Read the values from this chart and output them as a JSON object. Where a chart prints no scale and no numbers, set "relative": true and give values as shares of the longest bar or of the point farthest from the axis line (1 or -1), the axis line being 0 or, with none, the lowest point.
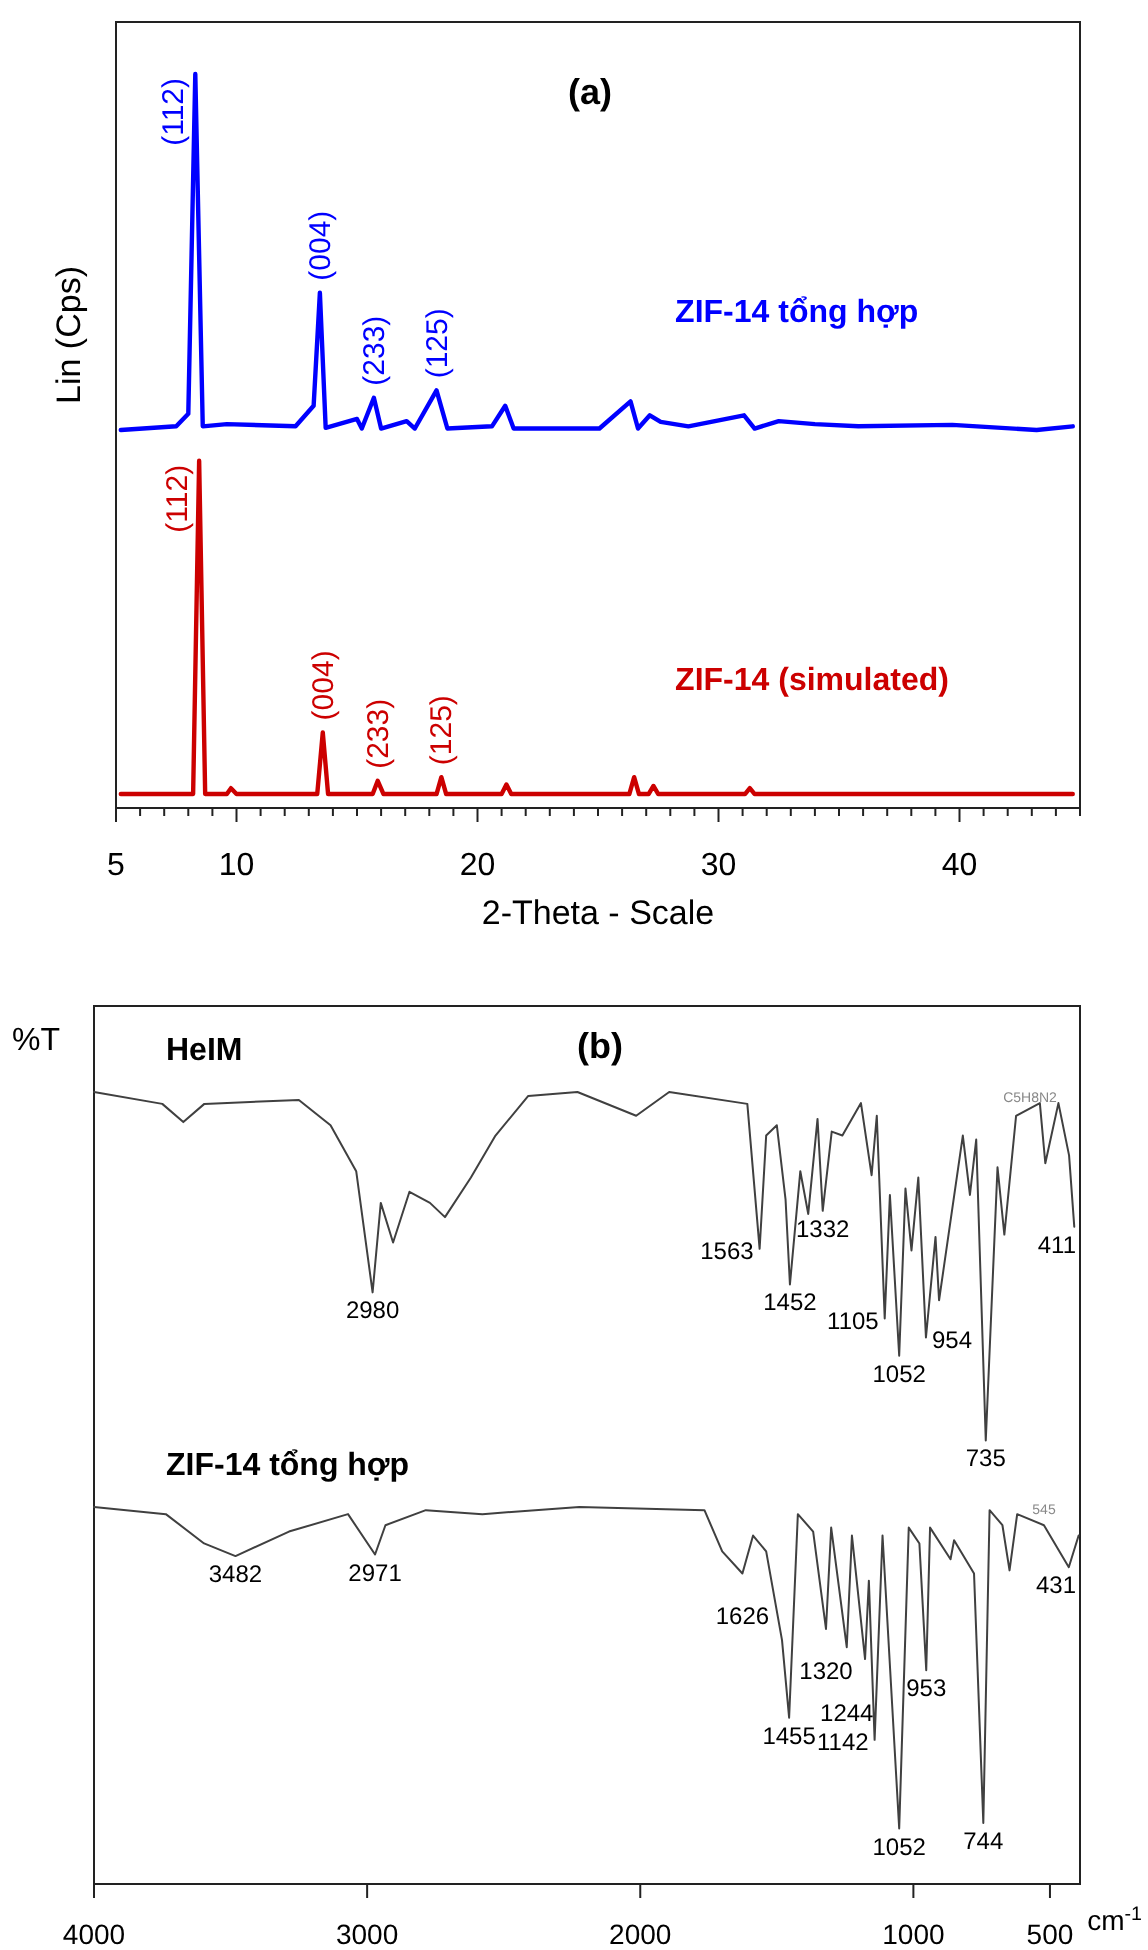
{
  "chart_data": [
    {
      "type": "line",
      "relative": true,
      "xlabel": "2-Theta - Scale",
      "ylabel": "Lin (Cps)",
      "xlim": [
        5,
        45
      ],
      "xticks": [
        5,
        {
          "value": 6,
          "label": null
        },
        {
          "value": 7,
          "label": null
        },
        {
          "value": 8,
          "label": null
        },
        {
          "value": 9,
          "label": null
        },
        10,
        {
          "value": 11,
          "label": null
        },
        {
          "value": 12,
          "label": null
        },
        {
          "value": 13,
          "label": null
        },
        {
          "value": 14,
          "label": null
        },
        {
          "value": 15,
          "label": null
        },
        {
          "value": 16,
          "label": null
        },
        {
          "value": 17,
          "label": null
        },
        {
          "value": 18,
          "label": null
        },
        {
          "value": 19,
          "label": null
        },
        20,
        {
          "value": 21,
          "label": null
        },
        {
          "value": 22,
          "label": null
        },
        {
          "value": 23,
          "label": null
        },
        {
          "value": 24,
          "label": null
        },
        {
          "value": 25,
          "label": null
        },
        {
          "value": 26,
          "label": null
        },
        {
          "value": 27,
          "label": null
        },
        {
          "value": 28,
          "label": null
        },
        {
          "value": 29,
          "label": null
        },
        30,
        {
          "value": 31,
          "label": null
        },
        {
          "value": 32,
          "label": null
        },
        {
          "value": 33,
          "label": null
        },
        {
          "value": 34,
          "label": null
        },
        {
          "value": 35,
          "label": null
        },
        {
          "value": 36,
          "label": null
        },
        {
          "value": 37,
          "label": null
        },
        {
          "value": 38,
          "label": null
        },
        {
          "value": 39,
          "label": null
        },
        40,
        {
          "value": 41,
          "label": null
        },
        {
          "value": 42,
          "label": null
        },
        {
          "value": 43,
          "label": null
        },
        {
          "value": 44,
          "label": null
        },
        {
          "value": 45,
          "label": null
        }
      ],
      "series": [
        {
          "name": "ZIF-14 tổng hợp",
          "color": "#0000ff",
          "x": [
            5.2,
            7.5,
            8.0,
            8.29,
            8.6,
            9.6,
            12.45,
            13.2,
            13.46,
            13.7,
            15.0,
            15.2,
            15.7,
            16.0,
            17.06,
            17.4,
            18.3,
            18.75,
            20.6,
            21.15,
            21.5,
            25.06,
            26.35,
            26.66,
            27.15,
            27.6,
            28.75,
            31.06,
            31.5,
            32.5,
            34.0,
            35.8,
            39.7,
            43.2,
            44.7
          ],
          "values": [
            0.515,
            0.52,
            0.537,
            1.0,
            0.52,
            0.523,
            0.52,
            0.548,
            0.702,
            0.518,
            0.53,
            0.517,
            0.559,
            0.517,
            0.527,
            0.517,
            0.569,
            0.517,
            0.52,
            0.548,
            0.517,
            0.517,
            0.554,
            0.517,
            0.535,
            0.526,
            0.52,
            0.535,
            0.517,
            0.527,
            0.523,
            0.52,
            0.522,
            0.515,
            0.52
          ]
        },
        {
          "name": "ZIF-14 (simulated)",
          "color": "#cc0000",
          "x": [
            5.2,
            8.2,
            8.45,
            8.7,
            9.6,
            9.77,
            10.0,
            13.35,
            13.58,
            13.8,
            15.65,
            15.86,
            16.1,
            18.3,
            18.5,
            18.7,
            21.0,
            21.2,
            21.4,
            26.3,
            26.5,
            26.7,
            27.1,
            27.3,
            27.5,
            31.1,
            31.3,
            31.5,
            44.7
          ],
          "values": [
            0.019,
            0.019,
            0.473,
            0.019,
            0.019,
            0.027,
            0.019,
            0.019,
            0.103,
            0.019,
            0.019,
            0.037,
            0.019,
            0.019,
            0.042,
            0.019,
            0.019,
            0.032,
            0.019,
            0.019,
            0.042,
            0.019,
            0.019,
            0.03,
            0.019,
            0.019,
            0.027,
            0.019,
            0.019
          ]
        }
      ],
      "annotations": [
        "(a)",
        {
          "text": "(112)",
          "x": 8.29,
          "y": 1.0
        },
        {
          "text": "(004)",
          "x": 13.46,
          "y": 0.702
        },
        {
          "text": "(233)",
          "x": 15.7,
          "y": 0.559
        },
        {
          "text": "(125)",
          "x": 18.3,
          "y": 0.569
        },
        {
          "text": "(112)",
          "x": 8.45,
          "y": 0.473
        },
        {
          "text": "(004)",
          "x": 13.58,
          "y": 0.103
        },
        {
          "text": "(233)",
          "x": 15.86,
          "y": 0.037
        },
        {
          "text": "(125)",
          "x": 18.5,
          "y": 0.042
        }
      ]
    },
    {
      "type": "line",
      "relative": true,
      "xlabel": "cm$^{-1}$",
      "ylabel": "%T",
      "xlim": [
        4000,
        390
      ],
      "xticks": [
        4000,
        3000,
        2000,
        1000,
        500
      ],
      "series": [
        {
          "name": "HeIM",
          "color": "#404040",
          "x": [
            4000,
            3750,
            3673,
            3596,
            3250,
            3134,
            3040,
            2980,
            2950,
            2905,
            2845,
            2770,
            2715,
            2620,
            2530,
            2410,
            2230,
            2015,
            1894,
            1608,
            1563,
            1539,
            1500,
            1468,
            1452,
            1414,
            1385,
            1351,
            1332,
            1299,
            1260,
            1192,
            1153,
            1134,
            1105,
            1086,
            1052,
            1029,
            1007,
            982,
            954,
            919,
            906,
            819,
            793,
            770,
            735,
            692,
            667,
            624,
            537,
            517,
            469,
            430,
            411
          ],
          "values": [
            1.0,
            0.985,
            0.962,
            0.985,
            0.99,
            0.958,
            0.9,
            0.747,
            0.86,
            0.81,
            0.874,
            0.86,
            0.842,
            0.892,
            0.945,
            0.995,
            1.0,
            0.97,
            1.0,
            0.985,
            0.802,
            0.945,
            0.958,
            0.864,
            0.757,
            0.9,
            0.846,
            0.966,
            0.85,
            0.95,
            0.945,
            0.986,
            0.895,
            0.97,
            0.714,
            0.87,
            0.667,
            0.878,
            0.8,
            0.892,
            0.69,
            0.817,
            0.737,
            0.945,
            0.87,
            0.94,
            0.56,
            0.905,
            0.82,
            0.97,
            0.986,
            0.91,
            0.986,
            0.92,
            0.83
          ]
        },
        {
          "name": "ZIF-14 tổng hợp",
          "color": "#404040",
          "x": [
            4000,
            3737,
            3597,
            3482,
            3286,
            3070,
            2971,
            2933,
            2785,
            2578,
            2223,
            1765,
            1700,
            1626,
            1587,
            1539,
            1481,
            1455,
            1423,
            1367,
            1320,
            1301,
            1244,
            1225,
            1177,
            1163,
            1142,
            1113,
            1052,
            1017,
            978,
            953,
            939,
            864,
            851,
            778,
            744,
            721,
            674,
            648,
            620,
            522,
            431,
            395
          ],
          "values": [
            0.476,
            0.467,
            0.43,
            0.414,
            0.445,
            0.467,
            0.416,
            0.453,
            0.472,
            0.467,
            0.476,
            0.472,
            0.42,
            0.392,
            0.44,
            0.42,
            0.308,
            0.21,
            0.467,
            0.445,
            0.322,
            0.45,
            0.299,
            0.44,
            0.284,
            0.383,
            0.182,
            0.44,
            0.07,
            0.45,
            0.43,
            0.27,
            0.45,
            0.41,
            0.434,
            0.392,
            0.077,
            0.472,
            0.453,
            0.396,
            0.467,
            0.453,
            0.4,
            0.44
          ]
        }
      ],
      "annotations": [
        "(b)",
        "C5H8N2",
        "545",
        {
          "text": "2980",
          "x": 2980,
          "y": 0.747
        },
        {
          "text": "1563",
          "x": 1563,
          "y": 0.802
        },
        {
          "text": "1452",
          "x": 1452,
          "y": 0.757
        },
        {
          "text": "1332",
          "x": 1332,
          "y": 0.85
        },
        {
          "text": "1105",
          "x": 1105,
          "y": 0.714
        },
        {
          "text": "1052",
          "x": 1052,
          "y": 0.667
        },
        {
          "text": "954",
          "x": 954,
          "y": 0.69
        },
        {
          "text": "735",
          "x": 735,
          "y": 0.56
        },
        {
          "text": "411",
          "x": 411,
          "y": 0.83
        },
        {
          "text": "3482",
          "x": 3482,
          "y": 0.414
        },
        {
          "text": "2971",
          "x": 2971,
          "y": 0.416
        },
        {
          "text": "1626",
          "x": 1626,
          "y": 0.392
        },
        {
          "text": "1455",
          "x": 1455,
          "y": 0.21
        },
        {
          "text": "1320",
          "x": 1320,
          "y": 0.322
        },
        {
          "text": "1244",
          "x": 1244,
          "y": 0.299
        },
        {
          "text": "1142",
          "x": 1142,
          "y": 0.182
        },
        {
          "text": "1052",
          "x": 1052,
          "y": 0.07
        },
        {
          "text": "953",
          "x": 953,
          "y": 0.27
        },
        {
          "text": "744",
          "x": 744,
          "y": 0.077
        },
        {
          "text": "431",
          "x": 431,
          "y": 0.4
        }
      ]
    }
  ]
}
